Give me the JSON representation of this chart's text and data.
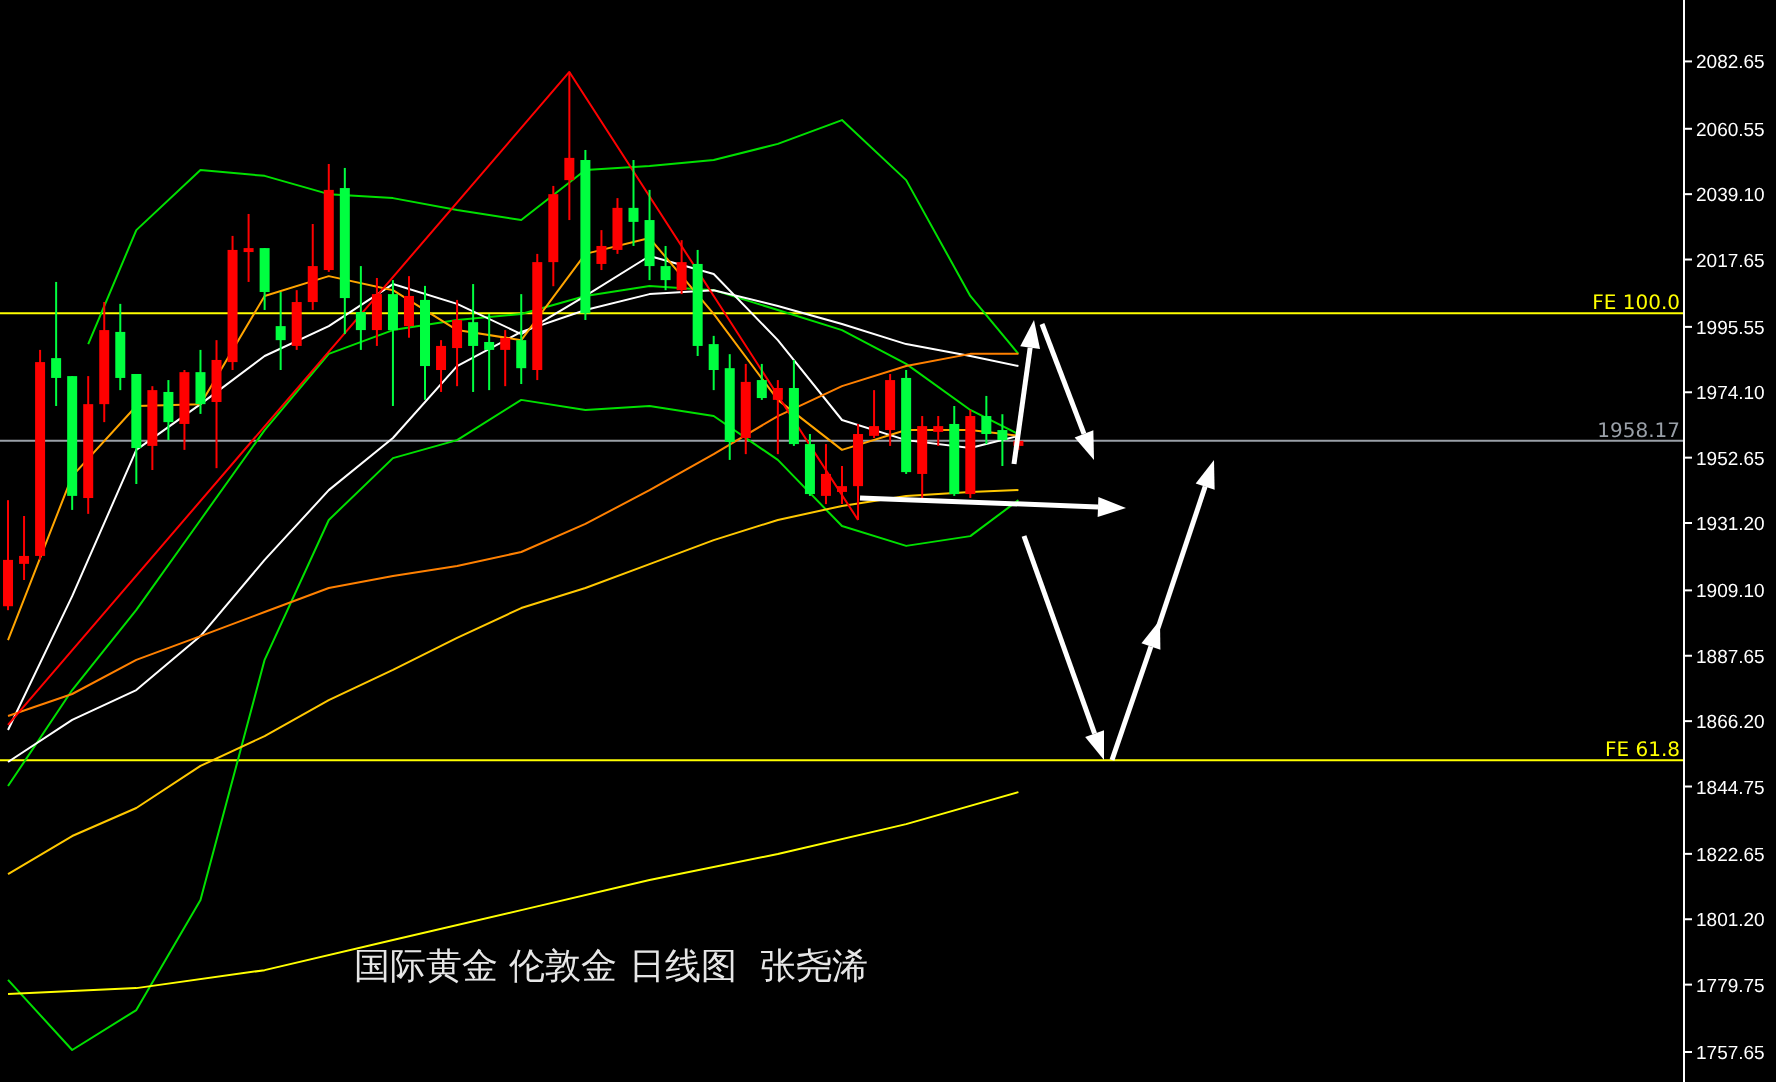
{
  "chart_data": {
    "type": "candlestick",
    "categories": [
      null,
      null,
      null,
      null,
      null,
      null,
      null,
      null,
      null,
      null,
      null,
      null,
      null,
      null,
      null,
      null,
      null,
      null,
      null,
      null,
      null,
      null,
      null,
      null,
      null,
      null,
      null,
      null,
      null,
      null,
      null,
      null,
      null,
      null,
      null,
      null,
      null,
      null,
      null,
      null,
      null,
      null,
      null,
      null,
      null,
      null,
      null,
      null,
      null,
      null,
      null,
      null,
      null,
      null,
      null,
      null,
      null,
      null,
      null,
      null,
      null,
      null,
      null,
      null,
      null,
      null,
      null,
      null,
      null,
      null,
      null,
      null,
      null,
      null,
      null,
      null,
      null,
      null,
      null,
      null,
      null,
      null,
      null,
      null,
      null,
      null,
      null,
      null,
      null,
      null,
      null,
      null,
      null,
      null,
      null,
      null,
      null,
      null,
      null,
      null,
      null,
      null,
      null,
      null,
      null
    ],
    "ohlc": [
      [
        1903.9,
        1938.7,
        1902.6,
        1919.1
      ],
      [
        1917.8,
        1933.5,
        1912.5,
        1920.4
      ],
      [
        1920.4,
        1988.0,
        1919.1,
        1984.0
      ],
      [
        1985.3,
        2010.3,
        1969.6,
        1978.8
      ],
      [
        1979.4,
        1979.4,
        1935.5,
        1940.1
      ],
      [
        1939.4,
        1979.4,
        1934.2,
        1970.2
      ],
      [
        1970.2,
        2003.7,
        1964.3,
        1994.5
      ],
      [
        1993.9,
        2003.1,
        1974.8,
        1978.8
      ],
      [
        1980.1,
        1980.1,
        1944.0,
        1955.8
      ],
      [
        1956.5,
        1976.1,
        1948.6,
        1974.8
      ],
      [
        1974.2,
        1978.1,
        1958.4,
        1964.3
      ],
      [
        1963.7,
        1981.4,
        1955.2,
        1980.7
      ],
      [
        1980.7,
        1988.0,
        1967.0,
        1970.2
      ],
      [
        1970.9,
        1991.2,
        1949.2,
        1984.7
      ],
      [
        1984.0,
        2025.4,
        1981.4,
        2020.8
      ],
      [
        2020.1,
        2032.6,
        2010.3,
        2021.4
      ],
      [
        2021.4,
        2021.4,
        2001.1,
        2007.0
      ],
      [
        1995.8,
        2007.0,
        1981.4,
        1991.2
      ],
      [
        1989.3,
        2007.6,
        1988.0,
        2003.7
      ],
      [
        2003.7,
        2029.3,
        2001.1,
        2015.5
      ],
      [
        2014.2,
        2049.0,
        2013.6,
        2040.5
      ],
      [
        2041.1,
        2047.7,
        1993.2,
        2005.0
      ],
      [
        2000.4,
        2015.5,
        1988.0,
        1994.5
      ],
      [
        1994.5,
        2011.6,
        1989.3,
        2006.3
      ],
      [
        2006.3,
        2010.9,
        1969.6,
        1994.5
      ],
      [
        1995.8,
        2012.2,
        1992.0,
        2005.7
      ],
      [
        2004.4,
        2009.0,
        1971.6,
        1982.7
      ],
      [
        1981.4,
        1991.2,
        1974.2,
        1989.3
      ],
      [
        1988.6,
        2004.4,
        1976.1,
        1997.8
      ],
      [
        1997.1,
        2009.6,
        1974.2,
        1989.3
      ],
      [
        1990.6,
        1999.8,
        1974.8,
        1988.0
      ],
      [
        1988.0,
        1994.5,
        1976.1,
        1991.9
      ],
      [
        1991.2,
        2006.3,
        1976.8,
        1982.0
      ],
      [
        1981.4,
        2019.5,
        1978.1,
        2016.8
      ],
      [
        2016.8,
        2041.8,
        2008.9,
        2039.1
      ],
      [
        2043.7,
        2079.2,
        2030.6,
        2051.0
      ],
      [
        2050.3,
        2053.6,
        1997.8,
        2000.0
      ],
      [
        2016.2,
        2027.3,
        2014.2,
        2022.1
      ],
      [
        2020.8,
        2037.8,
        2019.5,
        2034.6
      ],
      [
        2034.6,
        2050.3,
        2022.1,
        2030.0
      ],
      [
        2030.6,
        2040.5,
        2010.9,
        2015.5
      ],
      [
        2015.5,
        2022.1,
        2007.6,
        2010.9
      ],
      [
        2007.6,
        2024.0,
        2006.3,
        2016.8
      ],
      [
        2016.2,
        2020.8,
        1986.0,
        1989.3
      ],
      [
        1989.9,
        1992.6,
        1974.8,
        1981.4
      ],
      [
        1982.0,
        1986.6,
        1951.9,
        1957.8
      ],
      [
        1959.1,
        1983.4,
        1953.8,
        1977.5
      ],
      [
        1978.1,
        1983.4,
        1971.6,
        1972.2
      ],
      [
        1971.6,
        1978.1,
        1953.8,
        1975.5
      ],
      [
        1975.5,
        1984.7,
        1956.5,
        1957.1
      ],
      [
        1957.1,
        1960.4,
        1940.1,
        1940.7
      ],
      [
        1940.1,
        1957.1,
        1937.4,
        1947.3
      ],
      [
        1941.4,
        1949.9,
        1937.4,
        1943.3
      ],
      [
        1943.3,
        1963.7,
        1932.2,
        1960.4
      ],
      [
        1959.8,
        1974.8,
        1959.1,
        1963.0
      ],
      [
        1961.7,
        1980.1,
        1956.5,
        1978.1
      ],
      [
        1978.8,
        1981.4,
        1947.3,
        1947.9
      ],
      [
        1947.3,
        1966.3,
        1939.4,
        1963.0
      ],
      [
        1961.1,
        1966.3,
        1956.5,
        1963.0
      ],
      [
        1963.7,
        1969.6,
        1940.1,
        1940.7
      ],
      [
        1940.7,
        1968.3,
        1939.4,
        1966.3
      ],
      [
        1966.3,
        1972.9,
        1957.1,
        1960.4
      ],
      [
        1961.7,
        1966.9,
        1949.9,
        1958.4
      ],
      [
        1956.5,
        1960.4,
        1955.2,
        1958.17
      ],
      null,
      null,
      null,
      null,
      null,
      null,
      null,
      null,
      null,
      null,
      null,
      null,
      null,
      null,
      null,
      null,
      null,
      null,
      null,
      null,
      null,
      null,
      null,
      null,
      null,
      null,
      null,
      null,
      null,
      null,
      null,
      null,
      null,
      null,
      null,
      null,
      null,
      null,
      null,
      null,
      null
    ],
    "colors": [
      "#ff0000",
      "#ff0000",
      "#ff0000",
      "#00ff40",
      "#00ff40",
      "#ff0000",
      "#ff0000",
      "#00ff40",
      "#00ff40",
      "#ff0000",
      "#00ff40",
      "#ff0000",
      "#00ff40",
      "#ff0000",
      "#ff0000",
      "#ff0000",
      "#00ff40",
      "#00ff40",
      "#ff0000",
      "#ff0000",
      "#ff0000",
      "#00ff40",
      "#00ff40",
      "#ff0000",
      "#00ff40",
      "#ff0000",
      "#00ff40",
      "#ff0000",
      "#ff0000",
      "#00ff40",
      "#00ff40",
      "#ff0000",
      "#00ff40",
      "#ff0000",
      "#ff0000",
      "#ff0000",
      "#00ff40",
      "#ff0000",
      "#ff0000",
      "#00ff40",
      "#00ff40",
      "#00ff40",
      "#ff0000",
      "#00ff40",
      "#00ff40",
      "#00ff40",
      "#ff0000",
      "#00ff40",
      "#ff0000",
      "#00ff40",
      "#00ff40",
      "#ff0000",
      "#ff0000",
      "#ff0000",
      "#ff0000",
      "#ff0000",
      "#00ff40",
      "#ff0000",
      "#ff0000",
      "#00ff40",
      "#ff0000",
      "#00ff40",
      "#00ff40",
      "#ff0000",
      null,
      null,
      null,
      null,
      null,
      null,
      null,
      null,
      null,
      null,
      null,
      null,
      null,
      null,
      null,
      null,
      null,
      null,
      null,
      null,
      null,
      null,
      null,
      null,
      null,
      null,
      null,
      null,
      null,
      null,
      null,
      null,
      null,
      null,
      null,
      null,
      null,
      null,
      null,
      null,
      null
    ],
    "series": [
      {
        "type": "line",
        "color": "#00e000",
        "values": [
          null,
          null,
          null,
          null,
          null,
          1989.9,
          null,
          null,
          2027.3,
          null,
          null,
          null,
          2047.0,
          null,
          null,
          null,
          2045.1,
          null,
          null,
          null,
          2039.1,
          null,
          null,
          null,
          2037.8,
          null,
          null,
          null,
          2033.9,
          null,
          null,
          null,
          2030.6,
          null,
          null,
          null,
          2047.0,
          null,
          null,
          null,
          2048.3,
          null,
          null,
          null,
          2050.3,
          null,
          null,
          null,
          2055.6,
          null,
          null,
          null,
          2063.4,
          null,
          null,
          null,
          2043.7,
          null,
          null,
          null,
          2005.7,
          null,
          null,
          1986.7,
          null,
          null,
          null,
          null,
          null,
          null,
          null,
          null,
          null,
          null,
          null,
          null,
          null,
          null,
          null,
          null,
          null,
          null,
          null,
          null,
          null,
          null,
          null,
          null,
          null,
          null,
          null,
          null,
          null,
          null,
          null,
          null,
          null,
          null,
          null,
          null,
          null,
          null,
          null,
          null,
          null
        ]
      },
      {
        "type": "line",
        "color": "#00e000",
        "values": [
          1844.9,
          null,
          null,
          null,
          1876.4,
          null,
          null,
          null,
          1902.7,
          null,
          null,
          null,
          1932.2,
          null,
          null,
          null,
          1961.7,
          null,
          null,
          null,
          1986.7,
          null,
          null,
          null,
          1994.5,
          null,
          null,
          null,
          1997.8,
          null,
          null,
          null,
          1999.8,
          null,
          null,
          null,
          2005.7,
          null,
          null,
          null,
          2009.0,
          null,
          null,
          null,
          2007.6,
          null,
          null,
          null,
          2001.1,
          null,
          null,
          null,
          1994.5,
          null,
          null,
          null,
          1983.4,
          null,
          null,
          null,
          1968.3,
          null,
          null,
          1960.4,
          null,
          null,
          null,
          null,
          null,
          null,
          null,
          null,
          null,
          null,
          null,
          null,
          null,
          null,
          null,
          null,
          null,
          null,
          null,
          null,
          null,
          null,
          null,
          null,
          null,
          null,
          null,
          null,
          null,
          null,
          null,
          null,
          null,
          null,
          null,
          null,
          null,
          null,
          null,
          null,
          null
        ]
      },
      {
        "type": "line",
        "color": "#00e000",
        "values": [
          1781.3,
          null,
          null,
          null,
          1758.3,
          null,
          null,
          null,
          1771.4,
          null,
          null,
          null,
          1807.5,
          null,
          null,
          null,
          1886.3,
          null,
          null,
          null,
          1932.2,
          null,
          null,
          null,
          1952.5,
          null,
          null,
          null,
          1958.4,
          null,
          null,
          null,
          1971.6,
          null,
          null,
          null,
          1968.3,
          null,
          null,
          null,
          1969.6,
          null,
          null,
          null,
          1966.3,
          null,
          null,
          null,
          1951.9,
          null,
          null,
          null,
          1930.2,
          null,
          null,
          null,
          1923.7,
          null,
          null,
          null,
          1926.9,
          null,
          null,
          1938.7,
          null,
          null,
          null,
          null,
          null,
          null,
          null,
          null,
          null,
          null,
          null,
          null,
          null,
          null,
          null,
          null,
          null,
          null,
          null,
          null,
          null,
          null,
          null,
          null,
          null,
          null,
          null,
          null,
          null,
          null,
          null,
          null,
          null,
          null,
          null,
          null,
          null,
          null,
          null,
          null,
          null
        ]
      },
      {
        "type": "line",
        "color": "#ffffff",
        "values": [
          1863.3,
          null,
          null,
          null,
          1907.2,
          null,
          null,
          null,
          1955.2,
          null,
          null,
          null,
          1970.2,
          null,
          null,
          null,
          1986.0,
          null,
          null,
          null,
          1995.8,
          null,
          null,
          null,
          2009.6,
          null,
          null,
          null,
          2003.1,
          null,
          null,
          null,
          1993.2,
          null,
          null,
          null,
          2005.7,
          null,
          null,
          null,
          2018.8,
          null,
          null,
          null,
          2012.9,
          null,
          null,
          null,
          1991.2,
          null,
          null,
          null,
          1965.0,
          null,
          null,
          null,
          1958.4,
          null,
          null,
          null,
          1955.8,
          null,
          null,
          1959.8,
          null,
          null,
          null,
          null,
          null,
          null,
          null,
          null,
          null,
          null,
          null,
          null,
          null,
          null,
          null,
          null,
          null,
          null,
          null,
          null,
          null,
          null,
          null,
          null,
          null,
          null,
          null,
          null,
          null,
          null,
          null,
          null,
          null,
          null,
          null,
          null,
          null,
          null,
          null,
          null,
          null
        ]
      },
      {
        "type": "line",
        "color": "#ffffff",
        "values": [
          1852.8,
          null,
          null,
          null,
          1866.6,
          null,
          null,
          null,
          1876.4,
          null,
          null,
          null,
          1894.1,
          null,
          null,
          null,
          1919.1,
          null,
          null,
          null,
          1942.0,
          null,
          null,
          null,
          1959.1,
          null,
          null,
          null,
          1982.7,
          null,
          null,
          null,
          1993.9,
          null,
          null,
          null,
          2001.1,
          null,
          null,
          null,
          2006.3,
          null,
          null,
          null,
          2007.6,
          null,
          null,
          null,
          2002.4,
          null,
          null,
          null,
          1996.5,
          null,
          null,
          null,
          1989.9,
          null,
          null,
          null,
          1986.0,
          null,
          null,
          1982.7,
          null,
          null,
          null,
          null,
          null,
          null,
          null,
          null,
          null,
          null,
          null,
          null,
          null,
          null,
          null,
          null,
          null,
          null,
          null,
          null,
          null,
          null,
          null,
          null,
          null,
          null,
          null,
          null,
          null,
          null,
          null,
          null,
          null,
          null,
          null,
          null,
          null,
          null,
          null,
          null,
          null
        ]
      },
      {
        "type": "line",
        "color": "#ffa500",
        "values": [
          1892.8,
          null,
          null,
          null,
          1946.6,
          null,
          null,
          null,
          1969.6,
          null,
          null,
          null,
          1970.2,
          null,
          null,
          null,
          2005.7,
          null,
          null,
          null,
          2012.2,
          null,
          null,
          null,
          2007.6,
          null,
          null,
          null,
          1994.5,
          null,
          null,
          null,
          1991.2,
          null,
          null,
          null,
          2019.5,
          null,
          null,
          null,
          2024.7,
          null,
          null,
          null,
          1999.8,
          null,
          null,
          null,
          1971.6,
          null,
          null,
          null,
          1955.2,
          null,
          null,
          null,
          1961.7,
          null,
          null,
          null,
          1961.7,
          null,
          null,
          1959.8,
          null,
          null,
          null,
          null,
          null,
          null,
          null,
          null,
          null,
          null,
          null,
          null,
          null,
          null,
          null,
          null,
          null,
          null,
          null,
          null,
          null,
          null,
          null,
          null,
          null,
          null,
          null,
          null,
          null,
          null,
          null,
          null,
          null,
          null,
          null,
          null,
          null,
          null,
          null,
          null,
          null
        ]
      },
      {
        "type": "line",
        "color": "#ff8000",
        "values": [
          1867.9,
          null,
          null,
          null,
          1875.1,
          null,
          null,
          null,
          1886.3,
          null,
          null,
          null,
          1894.1,
          null,
          null,
          null,
          1902.0,
          null,
          null,
          null,
          1909.9,
          null,
          null,
          null,
          1913.8,
          null,
          null,
          null,
          1917.1,
          null,
          null,
          null,
          1921.7,
          null,
          null,
          null,
          1930.9,
          null,
          null,
          null,
          1942.0,
          null,
          null,
          null,
          1953.8,
          null,
          null,
          null,
          1966.3,
          null,
          null,
          null,
          1976.1,
          null,
          null,
          null,
          1982.7,
          null,
          null,
          null,
          1986.7,
          null,
          null,
          1986.7,
          null,
          null,
          null,
          null,
          null,
          null,
          null,
          null,
          null,
          null,
          null,
          null,
          null,
          null,
          null,
          null,
          null,
          null,
          null,
          null,
          null,
          null,
          null,
          null,
          null,
          null,
          null,
          null,
          null,
          null,
          null,
          null,
          null,
          null,
          null,
          null,
          null,
          null,
          null,
          null,
          null
        ]
      },
      {
        "type": "line",
        "color": "#ffc800",
        "values": [
          1816.0,
          null,
          null,
          null,
          1828.5,
          null,
          null,
          null,
          1837.7,
          null,
          null,
          null,
          1851.5,
          null,
          null,
          null,
          1861.3,
          null,
          null,
          null,
          1873.1,
          null,
          null,
          null,
          1883.0,
          null,
          null,
          null,
          1893.5,
          null,
          null,
          null,
          1903.3,
          null,
          null,
          null,
          1909.9,
          null,
          null,
          null,
          1917.7,
          null,
          null,
          null,
          1925.6,
          null,
          null,
          null,
          1932.2,
          null,
          null,
          null,
          1936.8,
          null,
          null,
          null,
          1940.1,
          null,
          null,
          null,
          1941.4,
          null,
          null,
          1942.0,
          null,
          null,
          null,
          null,
          null,
          null,
          null,
          null,
          null,
          null,
          null,
          null,
          null,
          null,
          null,
          null,
          null,
          null,
          null,
          null,
          null,
          null,
          null,
          null,
          null,
          null,
          null,
          null,
          null,
          null,
          null,
          null,
          null,
          null,
          null,
          null,
          null,
          null,
          null,
          null,
          null
        ]
      },
      {
        "type": "line",
        "color": "#ffff00",
        "values": [
          1776.7,
          null,
          null,
          null,
          null,
          null,
          null,
          null,
          1778.6,
          null,
          null,
          null,
          null,
          null,
          null,
          null,
          1784.5,
          null,
          null,
          null,
          null,
          null,
          null,
          null,
          1794.4,
          null,
          null,
          null,
          null,
          null,
          null,
          null,
          1804.2,
          null,
          null,
          null,
          null,
          null,
          null,
          null,
          1814.1,
          null,
          null,
          null,
          null,
          null,
          null,
          null,
          1822.6,
          null,
          null,
          null,
          null,
          null,
          null,
          null,
          1832.4,
          null,
          null,
          null,
          null,
          null,
          null,
          1842.9,
          null,
          null,
          null,
          null,
          null,
          null,
          null,
          null,
          null,
          null,
          null,
          null,
          null,
          null,
          null,
          null,
          null,
          null,
          null,
          null,
          null,
          null,
          null,
          null,
          null,
          null,
          null,
          null,
          null,
          null,
          null,
          null,
          null,
          null,
          null,
          null,
          null,
          null,
          null,
          null,
          null
        ]
      },
      {
        "type": "line",
        "color": "#ff0000",
        "values": [
          1865.0,
          null,
          null,
          null,
          null,
          null,
          null,
          null,
          null,
          null,
          null,
          null,
          null,
          null,
          null,
          null,
          null,
          null,
          null,
          null,
          null,
          null,
          null,
          null,
          null,
          null,
          null,
          null,
          null,
          null,
          null,
          null,
          null,
          null,
          null,
          2079.2,
          null,
          null,
          null,
          null,
          null,
          null,
          null,
          null,
          null,
          null,
          null,
          null,
          null,
          null,
          null,
          null,
          null,
          1932.2,
          null,
          null,
          null,
          null,
          null,
          null,
          null,
          null,
          null,
          null,
          null,
          null,
          null,
          null,
          null,
          null,
          null,
          null,
          null,
          null,
          null,
          null,
          null,
          null,
          null,
          null,
          null,
          null,
          null,
          null,
          null,
          null,
          null,
          null,
          null,
          null,
          null,
          null,
          null,
          null,
          null,
          null,
          null,
          null,
          null,
          null,
          null,
          null,
          null,
          null,
          null
        ]
      }
    ],
    "ref_lines": [
      {
        "axis": "y",
        "value": 2000.0,
        "label": "FE 100.0",
        "color": "#ffff00"
      },
      {
        "axis": "y",
        "value": 1853.4,
        "label": "FE 61.8",
        "color": "#ffff00"
      },
      {
        "axis": "y",
        "value": 1958.17,
        "label": "1958.17",
        "color": "#9aa0a8"
      }
    ],
    "annotations": [
      "国际黄金 伦敦金 日线图  张尧浠"
    ],
    "ylim": [
      1747.8,
      2102.8
    ],
    "yticks": [
      {
        "value": 2082.65,
        "label": "2082.65"
      },
      {
        "value": 2060.55,
        "label": "2060.55"
      },
      {
        "value": 2039.1,
        "label": "2039.10"
      },
      {
        "value": 2017.65,
        "label": "2017.65"
      },
      {
        "value": 1995.55,
        "label": "1995.55"
      },
      {
        "value": 1974.1,
        "label": "1974.10"
      },
      {
        "value": 1952.65,
        "label": "1952.65"
      },
      {
        "value": 1931.2,
        "label": "1931.20"
      },
      {
        "value": 1909.1,
        "label": "1909.10"
      },
      {
        "value": 1887.65,
        "label": "1887.65"
      },
      {
        "value": 1866.2,
        "label": "1866.20"
      },
      {
        "value": 1844.75,
        "label": "1844.75"
      },
      {
        "value": 1822.65,
        "label": "1822.65"
      },
      {
        "value": 1801.2,
        "label": "1801.20"
      },
      {
        "value": 1779.75,
        "label": "1779.75"
      },
      {
        "value": 1757.65,
        "label": "1757.65"
      }
    ],
    "tick_labels": "y",
    "grid": false
  }
}
